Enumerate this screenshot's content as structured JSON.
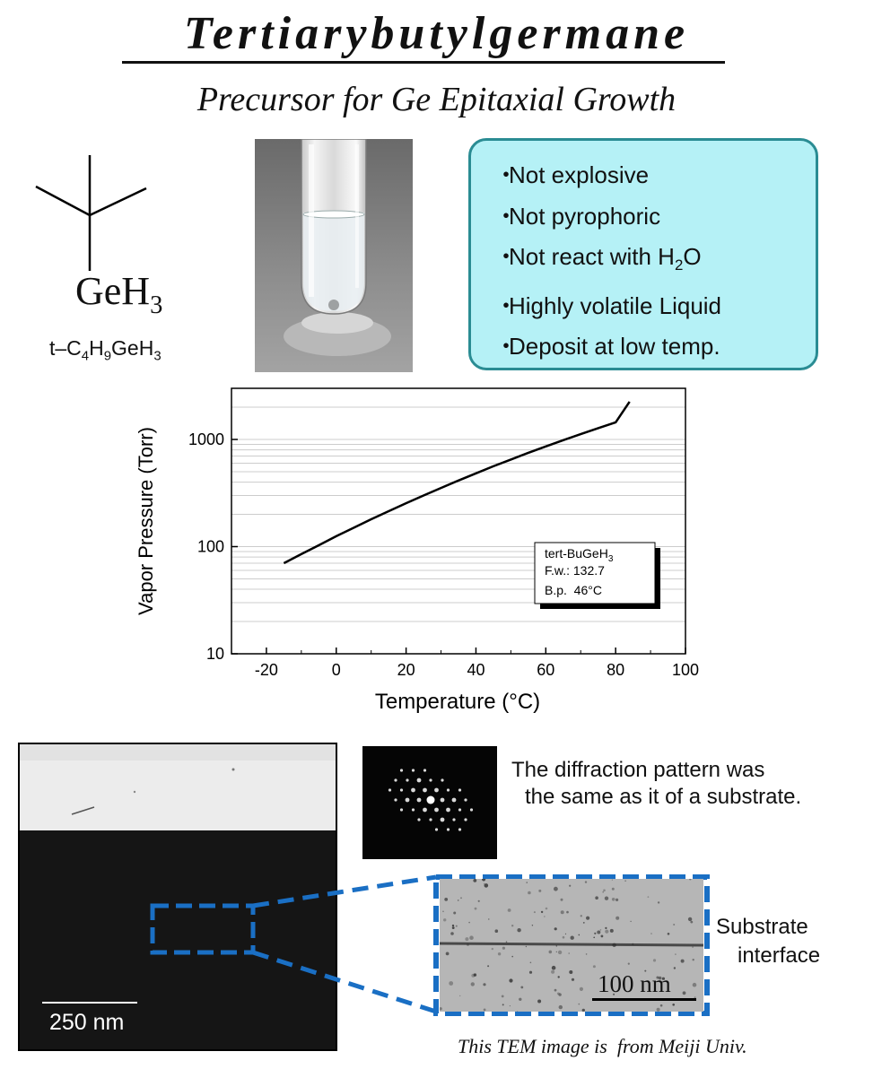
{
  "title": "Tertiarybutylgermane",
  "subtitle": "Precursor for Ge Epitaxial Growth",
  "molecule": {
    "label_base": "GeH",
    "label_sub": "3",
    "formula_parts": [
      "t–C",
      "4",
      "H",
      "9",
      "GeH",
      "3"
    ]
  },
  "properties": [
    {
      "text": "Not explosive"
    },
    {
      "text": "Not pyrophoric"
    },
    {
      "text_before": "Not react with H",
      "sub": "2",
      "text_after": "O"
    },
    {
      "text": "Highly volatile Liquid"
    },
    {
      "text": "Deposit at low temp."
    }
  ],
  "properties_box_color": "#b5f1f6",
  "chart_data": {
    "type": "line",
    "xlabel": "Temperature (°C)",
    "ylabel": "Vapor Pressure (Torr)",
    "xlim": [
      -30,
      100
    ],
    "ylim": [
      10,
      3000
    ],
    "yscale": "log",
    "x_ticks": [
      "-20",
      "0",
      "20",
      "40",
      "60",
      "80",
      "100"
    ],
    "y_ticks": [
      "10",
      "100",
      "1000"
    ],
    "grid": "horizontal minor",
    "series": [
      {
        "x": [
          -15,
          -10,
          -5,
          0,
          5,
          10,
          15,
          20,
          25,
          30,
          35,
          40,
          45,
          50,
          55,
          60,
          65,
          70,
          75,
          80,
          84
        ],
        "y": [
          70,
          85,
          103,
          125,
          150,
          180,
          214,
          254,
          300,
          353,
          414,
          483,
          562,
          650,
          750,
          860,
          985,
          1120,
          1275,
          1445,
          2250
        ]
      }
    ],
    "legend_box": {
      "name_base": "tert-BuGeH",
      "name_sub": "3",
      "fw": "F.w.: 132.7",
      "bp": "B.p.  46°C"
    }
  },
  "tem": {
    "main_scale": "250 nm",
    "zoom_scale": "100 nm",
    "diffraction_caption_1": "The diffraction pattern was",
    "diffraction_caption_2": "the same as it of a substrate.",
    "interface_label_1": "Substrate",
    "interface_label_2": "interface",
    "credit": "This TEM image is  from Meiji Univ."
  },
  "highlight_color": "#1a6fc4"
}
